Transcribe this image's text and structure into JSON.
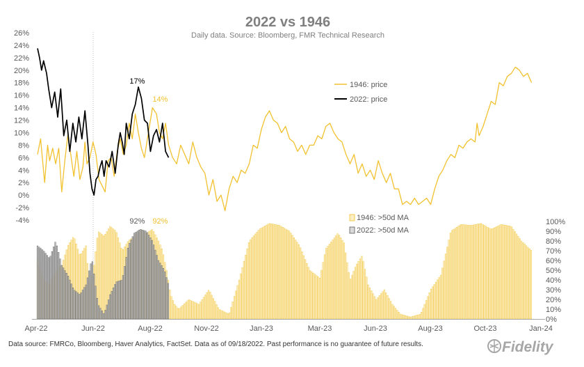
{
  "title": "2022 vs 1946",
  "subtitle": "Daily data.  Source: Bloomberg, FMR Technical Research",
  "footer": "Data source: FMRCo, Bloomberg, Haver Analytics, FactSet. Data as of 09/18/2022. Past performance is no guarantee of future results.",
  "logo_text": "Fidelity",
  "colors": {
    "series_1946": "#f2c12e",
    "series_2022": "#000000",
    "bars_1946": "#f7dc8c",
    "bars_2022": "#8c8c8c",
    "text": "#595959"
  },
  "chart_data": [
    {
      "type": "line",
      "title": "2022 vs 1946",
      "xlabel": "",
      "ylabel": "",
      "x_tick_labels": [
        "Apr-22",
        "Jun-22",
        "Aug-22",
        "Nov-22",
        "Jan-23",
        "Mar-23",
        "Jun-23",
        "Aug-23",
        "Oct-23",
        "Jan-24"
      ],
      "y_tick_labels": [
        "26%",
        "24%",
        "22%",
        "20%",
        "18%",
        "16%",
        "14%",
        "12%",
        "10%",
        "8%",
        "6%",
        "4%",
        "2%",
        "0%",
        "-2%",
        "-4%"
      ],
      "ylim": [
        -4,
        26
      ],
      "x_unit": "months since Apr-22",
      "legend": [
        "1946: price",
        "2022: price"
      ],
      "annotations": [
        {
          "text": "17%",
          "x": 5.05,
          "y": 17.3,
          "series": "2022: price"
        },
        {
          "text": "14%",
          "x": 5.6,
          "y": 14.4,
          "series": "1946: price"
        }
      ],
      "series": [
        {
          "name": "1946: price",
          "x": [
            0,
            0.15,
            0.35,
            0.5,
            0.6,
            0.75,
            0.9,
            1.05,
            1.2,
            1.35,
            1.5,
            1.65,
            1.8,
            1.95,
            2.1,
            2.25,
            2.35,
            2.45,
            2.6,
            2.75,
            2.9,
            3.05,
            3.2,
            3.35,
            3.5,
            3.65,
            3.8,
            3.95,
            4.1,
            4.25,
            4.4,
            4.55,
            4.7,
            4.85,
            5.0,
            5.15,
            5.3,
            5.5,
            5.7,
            5.9,
            6.05,
            6.2,
            6.35,
            6.5,
            6.7,
            6.9,
            7.1,
            7.3,
            7.5,
            7.7,
            7.9,
            8.1,
            8.3,
            8.5,
            8.7,
            8.9,
            9.1,
            9.3,
            9.5,
            9.7,
            9.9,
            10.1,
            10.3,
            10.5,
            10.7,
            10.9,
            11.1,
            11.3,
            11.5,
            11.7,
            11.9,
            12.1,
            12.3,
            12.5,
            12.7,
            12.9,
            13.1,
            13.3,
            13.5,
            13.7,
            13.9,
            14.1,
            14.3,
            14.5,
            14.7,
            14.9,
            15.1,
            15.3,
            15.5,
            15.7,
            15.9,
            16.1,
            16.3,
            16.5,
            16.7,
            16.9,
            17.1,
            17.3,
            17.5,
            17.7,
            17.9,
            18.1,
            18.3,
            18.5,
            18.7,
            18.9,
            19.1,
            19.3,
            19.5,
            19.7,
            19.9,
            20.1,
            20.3,
            20.5,
            20.7,
            20.9,
            21.1,
            21.3,
            21.5,
            21.7,
            21.8,
            21.9,
            22.1,
            22.3,
            22.5,
            22.7,
            22.9,
            23.1,
            23.3,
            23.5,
            23.7,
            23.9,
            24.1,
            24.3,
            24.5
          ],
          "values": [
            6.5,
            9.0,
            2.0,
            8.0,
            5.5,
            7.5,
            5.0,
            7.5,
            0.5,
            5.5,
            9.5,
            6.5,
            3.0,
            7.0,
            2.5,
            4.5,
            8.5,
            5.0,
            6.0,
            8.5,
            6.5,
            2.5,
            1.5,
            0.5,
            5.5,
            6.0,
            3.0,
            7.0,
            9.0,
            6.5,
            8.0,
            11.5,
            9.0,
            13.0,
            10.0,
            7.5,
            6.0,
            10.0,
            14.0,
            13.0,
            10.0,
            9.0,
            11.5,
            8.0,
            6.0,
            5.0,
            8.0,
            6.5,
            5.0,
            8.5,
            6.0,
            4.5,
            3.5,
            0.0,
            2.5,
            -1.0,
            0.0,
            -2.5,
            1.0,
            3.0,
            2.0,
            4.0,
            3.5,
            5.0,
            8.0,
            7.5,
            10.5,
            12.5,
            13.5,
            12.0,
            11.5,
            10.0,
            11.0,
            9.0,
            8.5,
            7.0,
            8.0,
            6.5,
            8.0,
            8.0,
            9.5,
            9.0,
            11.0,
            11.5,
            10.0,
            9.0,
            8.5,
            6.5,
            5.0,
            6.5,
            3.5,
            5.0,
            3.0,
            4.0,
            2.5,
            5.5,
            3.5,
            2.0,
            3.5,
            1.0,
            1.0,
            -1.5,
            -1.0,
            -1.5,
            -0.5,
            -1.5,
            -1.0,
            -0.5,
            -1.5,
            1.0,
            3.0,
            4.0,
            5.5,
            6.5,
            6.0,
            8.0,
            7.5,
            8.5,
            9.0,
            8.5,
            11.5,
            9.5,
            11.0,
            13.0,
            15.0,
            14.5,
            18.0,
            17.5,
            19.0,
            19.5,
            20.5,
            20.0,
            19.0,
            19.5,
            18.0
          ]
        },
        {
          "name": "2022: price",
          "x": [
            0,
            0.1,
            0.2,
            0.3,
            0.45,
            0.55,
            0.7,
            0.85,
            1.0,
            1.15,
            1.3,
            1.45,
            1.6,
            1.75,
            1.9,
            2.05,
            2.2,
            2.35,
            2.5,
            2.6,
            2.7,
            2.8,
            2.9,
            3.0,
            3.1,
            3.2,
            3.3,
            3.4,
            3.55,
            3.7,
            3.85,
            4.0,
            4.1,
            4.2,
            4.3,
            4.4,
            4.55,
            4.7,
            4.85,
            5.0,
            5.15,
            5.3,
            5.45,
            5.6,
            5.75,
            5.9,
            6.05,
            6.2,
            6.35,
            6.5
          ],
          "values": [
            23.5,
            22.0,
            20.0,
            21.5,
            19.5,
            17.0,
            14.0,
            16.5,
            12.5,
            17.0,
            9.5,
            12.0,
            7.0,
            11.5,
            8.5,
            12.5,
            9.0,
            13.5,
            8.0,
            3.5,
            1.0,
            0.0,
            2.5,
            3.0,
            4.5,
            5.5,
            3.0,
            5.5,
            4.5,
            7.0,
            3.5,
            8.0,
            10.0,
            8.5,
            6.5,
            11.5,
            9.0,
            13.0,
            14.5,
            17.3,
            15.5,
            12.0,
            11.5,
            7.0,
            9.5,
            10.5,
            8.5,
            11.5,
            7.0,
            6.0
          ]
        }
      ]
    },
    {
      "type": "bar",
      "title": "",
      "xlabel": "",
      "ylabel": "",
      "y_tick_labels": [
        "100%",
        "90%",
        "80%",
        "70%",
        "60%",
        "50%",
        "40%",
        "30%",
        "20%",
        "10%",
        "0%"
      ],
      "ylim": [
        0,
        100
      ],
      "legend": [
        "1946: >50d MA",
        "2022: >50d MA"
      ],
      "annotations": [
        {
          "text": "92%",
          "x": 5.05,
          "y": 92,
          "series": "2022: >50d MA"
        },
        {
          "text": "92%",
          "x": 5.6,
          "y": 92,
          "series": "1946: >50d MA"
        }
      ],
      "series": [
        {
          "name": "1946: >50d MA",
          "x": [
            0,
            0.3,
            0.6,
            0.9,
            1.2,
            1.5,
            1.8,
            2.1,
            2.4,
            2.6,
            2.8,
            3.0,
            3.3,
            3.6,
            3.9,
            4.2,
            4.5,
            4.8,
            5.1,
            5.4,
            5.7,
            6.0,
            6.2,
            6.4,
            6.6,
            6.8,
            7.0,
            7.5,
            8.0,
            8.5,
            9.0,
            9.5,
            10.0,
            10.5,
            11.0,
            11.5,
            12.0,
            12.5,
            13.0,
            13.5,
            14.0,
            14.3,
            14.6,
            14.9,
            15.2,
            15.5,
            15.8,
            16.1,
            16.4,
            16.8,
            17.2,
            17.6,
            18.0,
            18.5,
            19.0,
            19.5,
            20.0,
            20.5,
            21.0,
            21.5,
            22.0,
            22.5,
            23.0,
            23.5,
            24.0,
            24.5
          ],
          "values": [
            60,
            40,
            35,
            50,
            55,
            75,
            85,
            65,
            75,
            30,
            55,
            90,
            85,
            95,
            90,
            70,
            80,
            85,
            92,
            88,
            92,
            80,
            70,
            50,
            25,
            15,
            10,
            20,
            15,
            30,
            10,
            5,
            40,
            80,
            92,
            98,
            96,
            90,
            75,
            50,
            42,
            72,
            80,
            88,
            78,
            40,
            55,
            65,
            35,
            20,
            30,
            15,
            5,
            2,
            5,
            30,
            45,
            90,
            97,
            96,
            98,
            92,
            97,
            95,
            80,
            70
          ]
        },
        {
          "name": "2022: >50d MA",
          "x": [
            0,
            0.3,
            0.6,
            0.9,
            1.2,
            1.5,
            1.8,
            2.1,
            2.4,
            2.7,
            3.0,
            3.3,
            3.6,
            3.9,
            4.2,
            4.5,
            4.8,
            5.1,
            5.4,
            5.7,
            6.0,
            6.3,
            6.5
          ],
          "values": [
            75,
            70,
            62,
            80,
            55,
            45,
            30,
            25,
            35,
            62,
            15,
            5,
            25,
            38,
            40,
            75,
            88,
            92,
            90,
            80,
            60,
            50,
            35
          ]
        }
      ]
    }
  ]
}
